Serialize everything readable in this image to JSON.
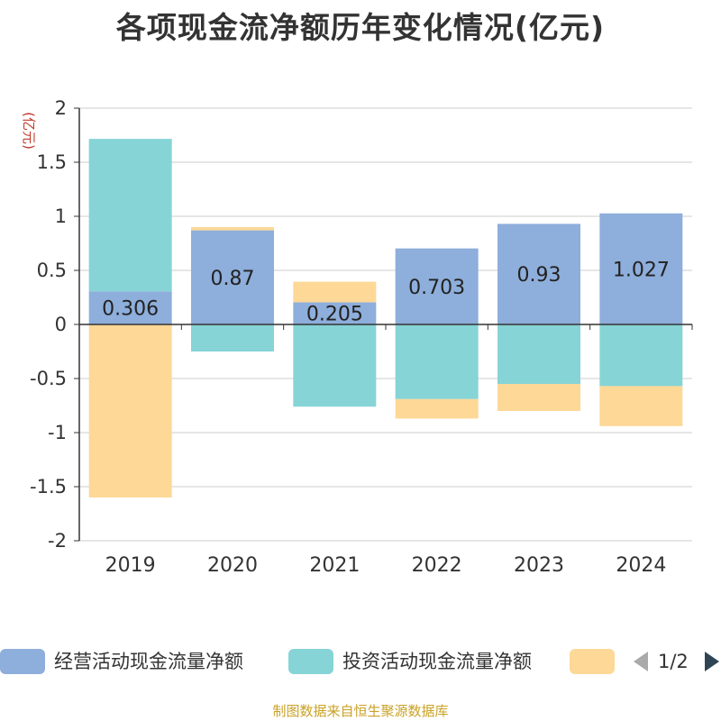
{
  "chart_data": {
    "type": "bar",
    "stacked": true,
    "title": "各项现金流净额历年变化情况(亿元)",
    "ylabel": "(亿元)",
    "ylim": [
      -2,
      2
    ],
    "yticks": [
      2,
      1.5,
      1,
      0.5,
      0,
      -0.5,
      -1,
      -1.5,
      -2
    ],
    "ytick_labels": [
      "2",
      "1.5",
      "1",
      "0.5",
      "0",
      "-0.5",
      "-1",
      "-1.5",
      "-2"
    ],
    "categories": [
      "2019",
      "2020",
      "2021",
      "2022",
      "2023",
      "2024"
    ],
    "series": [
      {
        "name": "经营活动现金流量净额",
        "color": "#8eaedb",
        "values": [
          0.306,
          0.87,
          0.205,
          0.703,
          0.93,
          1.027
        ],
        "data_labels": [
          "0.306",
          "0.87",
          "0.205",
          "0.703",
          "0.93",
          "1.027"
        ]
      },
      {
        "name": "投资活动现金流量净额",
        "color": "#86d4d6",
        "values": [
          1.41,
          -0.25,
          -0.76,
          -0.69,
          -0.55,
          -0.57
        ]
      },
      {
        "name": "",
        "color": "#fdd897",
        "values": [
          -1.6,
          0.03,
          0.19,
          -0.18,
          -0.25,
          -0.37
        ]
      }
    ],
    "grid": true,
    "legend_position": "bottom"
  },
  "legend": {
    "items": [
      "经营活动现金流量净额",
      "投资活动现金流量净额",
      ""
    ],
    "page": "1/2"
  },
  "footer": {
    "source": "制图数据来自恒生聚源数据库"
  }
}
